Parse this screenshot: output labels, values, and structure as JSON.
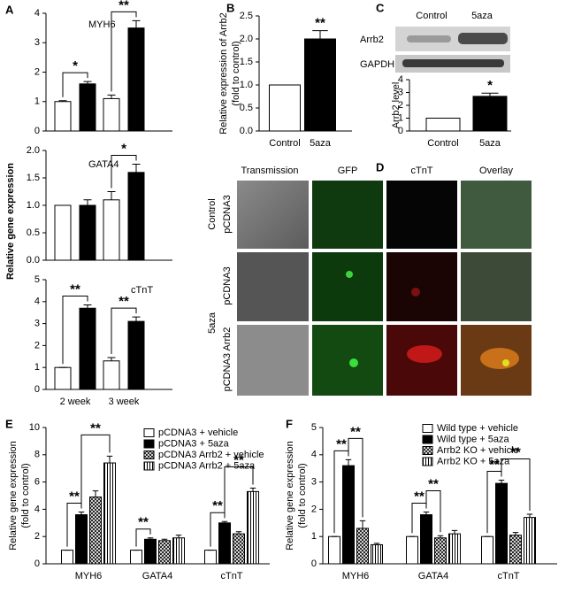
{
  "chart_data": [
    {
      "type": "bar",
      "panel": "A",
      "title": "MYH6",
      "ylabel": [
        "Relative gene expression"
      ],
      "ylim": [
        0,
        4
      ],
      "yticks": [
        0,
        1,
        2,
        3,
        4
      ],
      "series": [
        {
          "color": "#ffffff",
          "values": [
            1.0,
            1.1
          ],
          "errors": [
            0.03,
            0.12
          ]
        },
        {
          "color": "#000000",
          "values": [
            1.6,
            3.5
          ],
          "errors": [
            0.08,
            0.25
          ]
        }
      ],
      "annotations": [
        "*",
        "**"
      ]
    },
    {
      "type": "bar",
      "title": "GATA4",
      "ylim": [
        0,
        2.0
      ],
      "yticks": [
        {
          "value": 0,
          "label": "0.0"
        },
        {
          "value": 0.5,
          "label": "0.5"
        },
        {
          "value": 1.0,
          "label": "1.0"
        },
        {
          "value": 1.5,
          "label": "1.5"
        },
        {
          "value": 2.0,
          "label": "2.0"
        }
      ],
      "series": [
        {
          "color": "#ffffff",
          "values": [
            1.0,
            1.1
          ],
          "errors": [
            0.0,
            0.15
          ]
        },
        {
          "color": "#000000",
          "values": [
            1.0,
            1.6
          ],
          "errors": [
            0.1,
            0.15
          ]
        }
      ],
      "annotations": [
        "*"
      ]
    },
    {
      "type": "bar",
      "title": "cTnT",
      "categories": [
        "2 week",
        "3 week"
      ],
      "ylim": [
        0,
        5
      ],
      "yticks": [
        0,
        1,
        2,
        3,
        4,
        5
      ],
      "series": [
        {
          "color": "#ffffff",
          "values": [
            1.0,
            1.3
          ],
          "errors": [
            0.0,
            0.15
          ]
        },
        {
          "color": "#000000",
          "values": [
            3.7,
            3.1
          ],
          "errors": [
            0.15,
            0.2
          ]
        }
      ],
      "annotations": [
        "**",
        "**"
      ]
    },
    {
      "type": "bar",
      "panel": "B",
      "categories": [
        "Control",
        "5aza"
      ],
      "ylabel": [
        "Relative expression of Arrb2",
        "(fold to control)"
      ],
      "ylim": [
        0,
        2.5
      ],
      "yticks": [
        {
          "value": 0,
          "label": "0.0"
        },
        {
          "value": 0.5,
          "label": "0.5"
        },
        {
          "value": 1.0,
          "label": "1.0"
        },
        {
          "value": 1.5,
          "label": "1.5"
        },
        {
          "value": 2.0,
          "label": "2.0"
        },
        {
          "value": 2.5,
          "label": "2.5"
        }
      ],
      "series": [
        {
          "colors": [
            "#ffffff",
            "#000000"
          ],
          "values": [
            1.0,
            2.0
          ],
          "errors": [
            0.0,
            0.18
          ]
        }
      ],
      "annotations": [
        "**"
      ]
    },
    {
      "type": "bar",
      "panel": "C",
      "categories": [
        "Control",
        "5aza"
      ],
      "ylabel": [
        "Arrb2 level"
      ],
      "ylim": [
        0,
        4
      ],
      "yticks": [
        0,
        1,
        2,
        3,
        4
      ],
      "series": [
        {
          "colors": [
            "#ffffff",
            "#000000"
          ],
          "values": [
            1.0,
            2.7
          ],
          "errors": [
            0.0,
            0.25
          ]
        }
      ],
      "annotations": [
        "*"
      ]
    },
    {
      "type": "bar",
      "panel": "E",
      "categories": [
        "MYH6",
        "GATA4",
        "cTnT"
      ],
      "ylabel": [
        "Relative gene expression",
        "(fold to control)"
      ],
      "ylim": [
        0,
        10
      ],
      "yticks": [
        0,
        2,
        4,
        6,
        8,
        10
      ],
      "series": [
        {
          "name": "pCDNA3 + vehicle",
          "color": "#ffffff",
          "values": [
            1.0,
            1.0,
            1.0
          ],
          "errors": [
            0.0,
            0.0,
            0.0
          ]
        },
        {
          "name": "pCDNA3 + 5aza",
          "color": "#000000",
          "values": [
            3.6,
            1.8,
            3.0
          ],
          "errors": [
            0.2,
            0.1,
            0.1
          ]
        },
        {
          "name": "pCDNA3 Arrb2 + vehicle",
          "color": "#ffffff",
          "pattern": "crosshatch",
          "values": [
            4.9,
            1.7,
            2.2
          ],
          "errors": [
            0.45,
            0.1,
            0.15
          ]
        },
        {
          "name": "pCDNA3 Arrb2 + 5aza",
          "color": "#ffffff",
          "pattern": "vstripe",
          "values": [
            7.4,
            1.9,
            5.3
          ],
          "errors": [
            0.5,
            0.2,
            0.25
          ]
        }
      ],
      "annotations": [
        "**",
        "**",
        "**",
        "**",
        "**"
      ]
    },
    {
      "type": "bar",
      "panel": "F",
      "categories": [
        "MYH6",
        "GATA4",
        "cTnT"
      ],
      "ylabel": [
        "Relative gene expression",
        "(fold to control)"
      ],
      "ylim": [
        0,
        5
      ],
      "yticks": [
        0,
        1,
        2,
        3,
        4,
        5
      ],
      "series": [
        {
          "name": "Wild type + vehicle",
          "color": "#ffffff",
          "values": [
            1.0,
            1.0,
            1.0
          ],
          "errors": [
            0.0,
            0.0,
            0.0
          ]
        },
        {
          "name": "Wild type + 5aza",
          "color": "#000000",
          "values": [
            3.6,
            1.8,
            2.95
          ],
          "errors": [
            0.22,
            0.1,
            0.12
          ]
        },
        {
          "name": "Arrb2 KO + vehicle",
          "color": "#ffffff",
          "pattern": "crosshatch",
          "values": [
            1.3,
            0.95,
            1.05
          ],
          "errors": [
            0.28,
            0.08,
            0.1
          ]
        },
        {
          "name": "Arrb2 KO + 5aza",
          "color": "#ffffff",
          "pattern": "vstripe",
          "values": [
            0.7,
            1.1,
            1.7
          ],
          "errors": [
            0.05,
            0.12,
            0.12
          ]
        }
      ],
      "annotations": [
        "**",
        "**",
        "**",
        "**",
        "**",
        "**"
      ]
    }
  ],
  "blot": {
    "columns": [
      "Control",
      "5aza"
    ],
    "rows": [
      "Arrb2",
      "GAPDH"
    ]
  },
  "panel_d": {
    "panel": "D",
    "columns": [
      "Transmission",
      "GFP",
      "cTnT",
      "Overlay"
    ],
    "groups": [
      "Control",
      "5aza"
    ],
    "rows": [
      "pCDNA3",
      "pCDNA3",
      "pCDNA3 Arrb2"
    ]
  }
}
